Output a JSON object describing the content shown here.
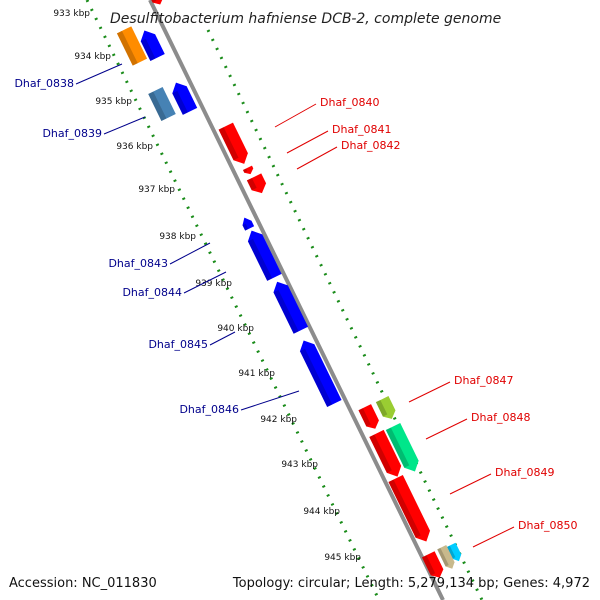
{
  "title": "Desulfitobacterium hafniense DCB-2, complete genome",
  "footer": {
    "accession": "Accession: NC_011830",
    "topology": "Topology: circular; Length: 5,279,134 bp; Genes: 4,972"
  },
  "colors": {
    "backbone": "#8c8c8c",
    "tick": "#1a8c1a",
    "label_minus": "#00008b",
    "label_plus": "#e00000"
  },
  "ticks": [
    "933 kbp",
    "934 kbp",
    "935 kbp",
    "936 kbp",
    "937 kbp",
    "938 kbp",
    "939 kbp",
    "940 kbp",
    "941 kbp",
    "942 kbp",
    "943 kbp",
    "944 kbp",
    "945 kbp"
  ],
  "genes": [
    {
      "id": "top-red",
      "label": "",
      "strand": "plus",
      "color": "#ff0000"
    },
    {
      "id": "orange",
      "label": "Dhaf_0838",
      "strand": "minus",
      "color": "#ff8c00"
    },
    {
      "id": "blue-a",
      "label": "",
      "strand": "minus",
      "color": "#0000ff"
    },
    {
      "id": "steel",
      "label": "Dhaf_0839",
      "strand": "minus",
      "color": "#4682b4"
    },
    {
      "id": "blue-b",
      "label": "",
      "strand": "minus",
      "color": "#0000ff"
    },
    {
      "id": "0840",
      "label": "Dhaf_0840",
      "strand": "plus",
      "color": "#ff0000"
    },
    {
      "id": "0841",
      "label": "Dhaf_0841",
      "strand": "plus",
      "color": "#ff0000"
    },
    {
      "id": "0842",
      "label": "Dhaf_0842",
      "strand": "plus",
      "color": "#ff0000"
    },
    {
      "id": "0843",
      "label": "Dhaf_0843",
      "strand": "minus",
      "color": "#0000ff"
    },
    {
      "id": "0844",
      "label": "Dhaf_0844",
      "strand": "minus",
      "color": "#0000ff"
    },
    {
      "id": "0845",
      "label": "Dhaf_0845",
      "strand": "minus",
      "color": "#0000ff"
    },
    {
      "id": "0846",
      "label": "Dhaf_0846",
      "strand": "minus",
      "color": "#0000ff"
    },
    {
      "id": "0847",
      "label": "Dhaf_0847",
      "strand": "plus",
      "color": "#9acd32"
    },
    {
      "id": "0847r",
      "label": "",
      "strand": "plus",
      "color": "#ff0000"
    },
    {
      "id": "0848",
      "label": "Dhaf_0848",
      "strand": "plus",
      "color": "#00e68a"
    },
    {
      "id": "0848r",
      "label": "",
      "strand": "plus",
      "color": "#ff0000"
    },
    {
      "id": "0849",
      "label": "Dhaf_0849",
      "strand": "plus",
      "color": "#ff0000"
    },
    {
      "id": "0850",
      "label": "Dhaf_0850",
      "strand": "plus",
      "color": "#00ccff"
    },
    {
      "id": "tan",
      "label": "",
      "strand": "plus",
      "color": "#c8b98c"
    },
    {
      "id": "bottom-red",
      "label": "",
      "strand": "plus",
      "color": "#ff0000"
    }
  ]
}
